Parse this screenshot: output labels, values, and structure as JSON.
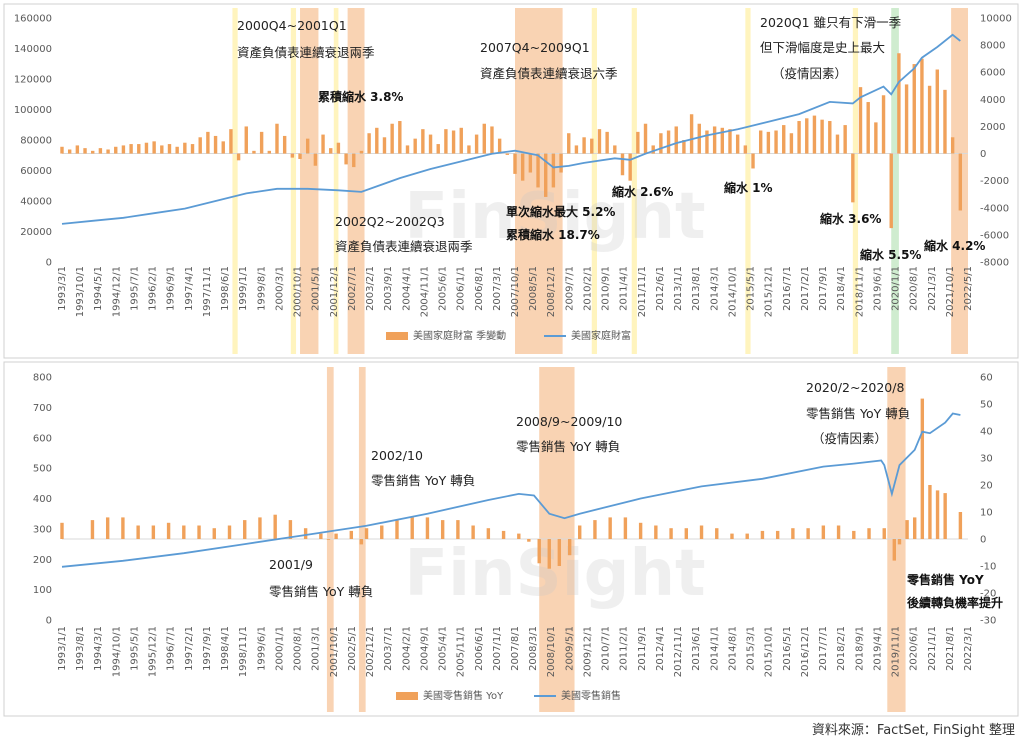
{
  "chart_data": [
    {
      "type": "bar+line",
      "name": "household-wealth",
      "y_left_ticks": [
        0,
        20000,
        40000,
        60000,
        80000,
        100000,
        120000,
        140000,
        160000
      ],
      "y_left_labels": [
        "0",
        "20000",
        "40000",
        "60000",
        "80000",
        "100000",
        "120000",
        "140000",
        "160000"
      ],
      "y_right_ticks": [
        -8000,
        -6000,
        -4000,
        -2000,
        0,
        2000,
        4000,
        6000,
        8000,
        10000
      ],
      "y_right_labels": [
        "-8000",
        "-6000",
        "-4000",
        "-2000",
        "0",
        "2000",
        "4000",
        "6000",
        "8000",
        "10000"
      ],
      "ylim_left": [
        0,
        160000
      ],
      "ylim_right": [
        -8000,
        10000
      ],
      "x_tick_labels": [
        "1993/3/1",
        "1993/10/1",
        "1994/5/1",
        "1994/12/1",
        "1995/7/1",
        "1996/2/1",
        "1996/9/1",
        "1997/4/1",
        "1997/11/1",
        "1998/6/1",
        "1999/1/1",
        "1999/8/1",
        "2000/3/1",
        "2000/10/1",
        "2001/5/1",
        "2001/12/1",
        "2002/7/1",
        "2003/2/1",
        "2003/9/1",
        "2004/4/1",
        "2004/11/1",
        "2005/6/1",
        "2006/1/1",
        "2006/8/1",
        "2007/3/1",
        "2007/10/1",
        "2008/5/1",
        "2008/12/1",
        "2009/7/1",
        "2010/2/1",
        "2010/9/1",
        "2011/4/1",
        "2011/11/1",
        "2012/6/1",
        "2013/1/1",
        "2013/8/1",
        "2014/3/1",
        "2014/10/1",
        "2015/5/1",
        "2015/12/1",
        "2016/7/1",
        "2017/2/1",
        "2017/9/1",
        "2018/4/1",
        "2018/11/1",
        "2019/6/1",
        "2020/1/1",
        "2020/8/1",
        "2021/3/1",
        "2021/10/1",
        "2022/5/1"
      ],
      "x_start": 1993.0,
      "x_end": 2022.5,
      "series": [
        {
          "name": "美國家庭財富 季變動",
          "kind": "bar",
          "axis": "right",
          "x": [
            1993.0,
            1993.25,
            1993.5,
            1993.75,
            1994.0,
            1994.25,
            1994.5,
            1994.75,
            1995.0,
            1995.25,
            1995.5,
            1995.75,
            1996.0,
            1996.25,
            1996.5,
            1996.75,
            1997.0,
            1997.25,
            1997.5,
            1997.75,
            1998.0,
            1998.25,
            1998.5,
            1998.75,
            1999.0,
            1999.25,
            1999.5,
            1999.75,
            2000.0,
            2000.25,
            2000.5,
            2000.75,
            2001.0,
            2001.25,
            2001.5,
            2001.75,
            2002.0,
            2002.25,
            2002.5,
            2002.75,
            2003.0,
            2003.25,
            2003.5,
            2003.75,
            2004.0,
            2004.25,
            2004.5,
            2004.75,
            2005.0,
            2005.25,
            2005.5,
            2005.75,
            2006.0,
            2006.25,
            2006.5,
            2006.75,
            2007.0,
            2007.25,
            2007.5,
            2007.75,
            2008.0,
            2008.25,
            2008.5,
            2008.75,
            2009.0,
            2009.25,
            2009.5,
            2009.75,
            2010.0,
            2010.25,
            2010.5,
            2010.75,
            2011.0,
            2011.25,
            2011.5,
            2011.75,
            2012.0,
            2012.25,
            2012.5,
            2012.75,
            2013.0,
            2013.25,
            2013.5,
            2013.75,
            2014.0,
            2014.25,
            2014.5,
            2014.75,
            2015.0,
            2015.25,
            2015.5,
            2015.75,
            2016.0,
            2016.25,
            2016.5,
            2016.75,
            2017.0,
            2017.25,
            2017.5,
            2017.75,
            2018.0,
            2018.25,
            2018.5,
            2018.75,
            2019.0,
            2019.25,
            2019.5,
            2019.75,
            2020.0,
            2020.25,
            2020.5,
            2020.75,
            2021.0,
            2021.25,
            2021.5,
            2021.75,
            2022.0,
            2022.25
          ],
          "values": [
            500,
            300,
            600,
            400,
            200,
            400,
            300,
            500,
            600,
            700,
            700,
            800,
            900,
            600,
            700,
            500,
            800,
            700,
            1200,
            1600,
            1300,
            900,
            1800,
            -500,
            2000,
            200,
            1600,
            200,
            2200,
            1300,
            -300,
            -400,
            1100,
            -900,
            1400,
            400,
            800,
            -800,
            -1000,
            200,
            1500,
            1900,
            1200,
            2200,
            2400,
            600,
            1100,
            1800,
            1400,
            700,
            1800,
            1700,
            1900,
            600,
            1400,
            2200,
            2000,
            1100,
            -100,
            -1500,
            -2000,
            -1400,
            -2500,
            -3200,
            -2500,
            -1400,
            1500,
            600,
            1200,
            1100,
            1800,
            1600,
            600,
            -1600,
            -2000,
            1600,
            2200,
            600,
            1500,
            1700,
            2000,
            1000,
            2900,
            2200,
            1700,
            2000,
            1900,
            1800,
            1400,
            600,
            -1100,
            1700,
            1600,
            1700,
            2100,
            1500,
            2400,
            2600,
            2800,
            2500,
            2400,
            1400,
            2100,
            -3600,
            4900,
            3800,
            2300,
            4300,
            -5500,
            7400,
            5100,
            6600,
            7000,
            5000,
            6200,
            4700,
            1200,
            -4200
          ]
        },
        {
          "name": "美國家庭財富",
          "kind": "line",
          "axis": "left",
          "x": [
            1993.0,
            1994.0,
            1995.0,
            1996.0,
            1997.0,
            1998.0,
            1999.0,
            2000.0,
            2001.0,
            2002.0,
            2002.75,
            2004.0,
            2005.0,
            2006.0,
            2007.0,
            2007.75,
            2008.5,
            2009.0,
            2009.5,
            2010.0,
            2011.0,
            2011.5,
            2012.0,
            2013.0,
            2014.0,
            2015.0,
            2016.0,
            2017.0,
            2018.0,
            2018.75,
            2019.0,
            2019.75,
            2020.0,
            2020.25,
            2020.75,
            2021.0,
            2021.5,
            2022.0,
            2022.25
          ],
          "values": [
            25000,
            27000,
            29000,
            32000,
            35000,
            40000,
            45000,
            48000,
            48000,
            47000,
            46000,
            55000,
            61000,
            66000,
            71000,
            73000,
            70000,
            62000,
            63000,
            65000,
            68000,
            67000,
            71000,
            78000,
            83000,
            87000,
            92000,
            97000,
            105000,
            104000,
            108000,
            115000,
            110000,
            118000,
            127000,
            134000,
            141000,
            149000,
            145000
          ]
        }
      ],
      "highlights": [
        {
          "x0": 1998.55,
          "x1": 1998.72,
          "color": "#fff2b3"
        },
        {
          "x0": 2000.45,
          "x1": 2000.62,
          "color": "#fff2b3"
        },
        {
          "x0": 2000.75,
          "x1": 2001.35,
          "color": "#f8cba6"
        },
        {
          "x0": 2001.85,
          "x1": 2002.0,
          "color": "#fff2b3"
        },
        {
          "x0": 2002.3,
          "x1": 2002.85,
          "color": "#f8cba6"
        },
        {
          "x0": 2007.75,
          "x1": 2009.3,
          "color": "#f8cba6"
        },
        {
          "x0": 2010.25,
          "x1": 2010.42,
          "color": "#fff2b3"
        },
        {
          "x0": 2011.55,
          "x1": 2011.72,
          "color": "#fff2b3"
        },
        {
          "x0": 2015.25,
          "x1": 2015.42,
          "color": "#fff2b3"
        },
        {
          "x0": 2018.75,
          "x1": 2018.92,
          "color": "#fff2b3"
        },
        {
          "x0": 2020.0,
          "x1": 2020.25,
          "color": "#c7e9c7"
        },
        {
          "x0": 2021.95,
          "x1": 2022.5,
          "color": "#f8cba6"
        }
      ],
      "annotations": [
        {
          "text": "2000Q4~2001Q1",
          "bold": false
        },
        {
          "text": "資產負債表連續衰退兩季",
          "bold": false
        },
        {
          "text": "累積縮水 3.8%",
          "bold": true
        },
        {
          "text": "2002Q2~2002Q3",
          "bold": false
        },
        {
          "text": "資產負債表連續衰退兩季",
          "bold": false
        },
        {
          "text": "2007Q4~2009Q1",
          "bold": false
        },
        {
          "text": "資產負債表連續衰退六季",
          "bold": false
        },
        {
          "text": "單次縮水最大 5.2%",
          "bold": true
        },
        {
          "text": "累積縮水 18.7%",
          "bold": true
        },
        {
          "text": "縮水 2.6%",
          "bold": true
        },
        {
          "text": "縮水 1%",
          "bold": true
        },
        {
          "text": "2020Q1 雖只有下滑一季",
          "bold": false
        },
        {
          "text": "但下滑幅度是史上最大",
          "bold": false
        },
        {
          "text": "（疫情因素）",
          "bold": false
        },
        {
          "text": "縮水 3.6%",
          "bold": true
        },
        {
          "text": "縮水 5.5%",
          "bold": true
        },
        {
          "text": "縮水 4.2%",
          "bold": true
        }
      ]
    },
    {
      "type": "bar+line",
      "name": "retail-sales",
      "y_left_ticks": [
        0,
        100,
        200,
        300,
        400,
        500,
        600,
        700,
        800
      ],
      "y_left_labels": [
        "0",
        "100",
        "200",
        "300",
        "400",
        "500",
        "600",
        "700",
        "800"
      ],
      "y_right_ticks": [
        -30,
        -20,
        -10,
        0,
        10,
        20,
        30,
        40,
        50,
        60
      ],
      "y_right_labels": [
        "-30",
        "-20",
        "-10",
        "0",
        "10",
        "20",
        "30",
        "40",
        "50",
        "60"
      ],
      "ylim_left": [
        0,
        800
      ],
      "ylim_right": [
        -30,
        60
      ],
      "x_tick_labels": [
        "1993/1/1",
        "1993/8/1",
        "1994/3/1",
        "1994/10/1",
        "1995/5/1",
        "1995/12/1",
        "1996/7/1",
        "1997/2/1",
        "1997/9/1",
        "1998/4/1",
        "1998/11/1",
        "1999/6/1",
        "2000/1/1",
        "2000/8/1",
        "2001/3/1",
        "2001/10/1",
        "2002/5/1",
        "2002/12/1",
        "2003/7/1",
        "2004/2/1",
        "2004/9/1",
        "2005/4/1",
        "2005/11/1",
        "2006/6/1",
        "2007/1/1",
        "2007/8/1",
        "2008/3/1",
        "2008/10/1",
        "2009/5/1",
        "2009/12/1",
        "2010/7/1",
        "2011/2/1",
        "2011/9/1",
        "2012/4/1",
        "2012/11/1",
        "2013/6/1",
        "2014/1/1",
        "2014/8/1",
        "2015/3/1",
        "2015/10/1",
        "2016/5/1",
        "2016/12/1",
        "2017/7/1",
        "2018/2/1",
        "2018/9/1",
        "2019/4/1",
        "2019/11/1",
        "2020/6/1",
        "2021/1/1",
        "2021/8/1",
        "2022/3/1"
      ],
      "x_start": 1993.0,
      "x_end": 2022.75,
      "series": [
        {
          "name": "美國零售銷售 YoY",
          "kind": "bar",
          "axis": "right",
          "x": [
            1993.0,
            1994.0,
            1994.5,
            1995.0,
            1995.5,
            1996.0,
            1996.5,
            1997.0,
            1997.5,
            1998.0,
            1998.5,
            1999.0,
            1999.5,
            2000.0,
            2000.5,
            2001.0,
            2001.5,
            2001.75,
            2002.0,
            2002.5,
            2002.83,
            2003.0,
            2003.5,
            2004.0,
            2004.5,
            2005.0,
            2005.5,
            2006.0,
            2006.5,
            2007.0,
            2007.5,
            2008.0,
            2008.33,
            2008.67,
            2009.0,
            2009.33,
            2009.67,
            2010.0,
            2010.5,
            2011.0,
            2011.5,
            2012.0,
            2012.5,
            2013.0,
            2013.5,
            2014.0,
            2014.5,
            2015.0,
            2015.5,
            2016.0,
            2016.5,
            2017.0,
            2017.5,
            2018.0,
            2018.5,
            2019.0,
            2019.5,
            2020.0,
            2020.33,
            2020.5,
            2020.75,
            2021.0,
            2021.25,
            2021.5,
            2021.75,
            2022.0,
            2022.5
          ],
          "values": [
            6,
            7,
            8,
            8,
            5,
            5,
            6,
            5,
            5,
            4,
            5,
            7,
            8,
            9,
            7,
            4,
            2,
            0,
            2,
            3,
            -2,
            4,
            5,
            7,
            8,
            8,
            7,
            7,
            5,
            4,
            3,
            2,
            -1,
            -9,
            -11,
            -10,
            -6,
            5,
            7,
            8,
            8,
            6,
            5,
            4,
            4,
            5,
            4,
            2,
            2,
            3,
            3,
            4,
            4,
            5,
            5,
            3,
            4,
            4,
            -8,
            -2,
            7,
            8,
            52,
            20,
            18,
            17,
            10
          ]
        },
        {
          "name": "美國零售銷售",
          "kind": "line",
          "axis": "left",
          "x": [
            1993.0,
            1995.0,
            1997.0,
            1999.0,
            2001.0,
            2003.0,
            2005.0,
            2007.0,
            2008.0,
            2008.5,
            2009.0,
            2009.5,
            2010.0,
            2012.0,
            2014.0,
            2016.0,
            2018.0,
            2019.0,
            2019.9,
            2020.0,
            2020.25,
            2020.5,
            2021.0,
            2021.25,
            2021.5,
            2022.0,
            2022.25,
            2022.5
          ],
          "values": [
            175,
            195,
            220,
            250,
            280,
            310,
            350,
            395,
            415,
            410,
            350,
            335,
            350,
            400,
            440,
            465,
            505,
            515,
            525,
            510,
            415,
            510,
            560,
            620,
            615,
            650,
            680,
            675
          ]
        }
      ],
      "highlights": [
        {
          "x0": 2001.7,
          "x1": 2001.92,
          "color": "#f8cba6"
        },
        {
          "x0": 2002.75,
          "x1": 2002.97,
          "color": "#f8cba6"
        },
        {
          "x0": 2008.67,
          "x1": 2009.83,
          "color": "#f8cba6"
        },
        {
          "x0": 2020.1,
          "x1": 2020.7,
          "color": "#f8cba6"
        }
      ],
      "annotations": [
        {
          "text": "2008/9~2009/10",
          "bold": false
        },
        {
          "text": "零售銷售 YoY 轉負",
          "bold": false
        },
        {
          "text": "2020/2~2020/8",
          "bold": false
        },
        {
          "text": "零售銷售 YoY 轉負",
          "bold": false
        },
        {
          "text": "（疫情因素）",
          "bold": false
        },
        {
          "text": "2002/10",
          "bold": false
        },
        {
          "text": "零售銷售 YoY 轉負",
          "bold": false
        },
        {
          "text": "2001/9",
          "bold": false
        },
        {
          "text": "零售銷售 YoY 轉負",
          "bold": false
        },
        {
          "text": "零售銷售 YoY",
          "bold": true
        },
        {
          "text": "後續轉負機率提升",
          "bold": true
        }
      ]
    }
  ],
  "source": "資料來源：FactSet, FinSight 整理",
  "watermark": "FinSight",
  "colors": {
    "bar": "#f0a15a",
    "line": "#5b9bd5",
    "highlight_orange": "#f8cba6",
    "highlight_yellow": "#fff2b3",
    "highlight_green": "#c7e9c7"
  }
}
